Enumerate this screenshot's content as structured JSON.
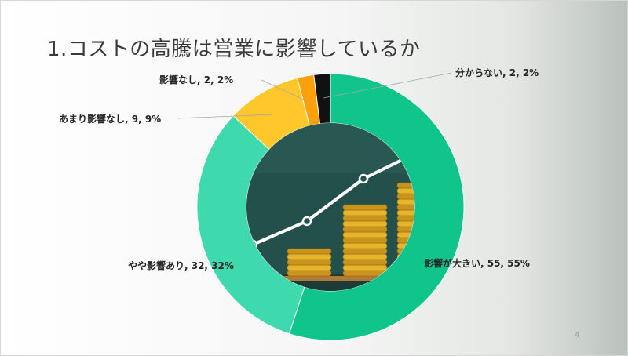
{
  "slide": {
    "title": "1.コストの高騰は営業に影響しているか",
    "page_number": "4"
  },
  "chart_data": {
    "type": "pie",
    "title": "1.コストの高騰は営業に影響しているか",
    "slices": [
      {
        "label": "影響が大きい",
        "value": 55,
        "percent": "55%",
        "color": "#10C58B"
      },
      {
        "label": "やや影響あり",
        "value": 32,
        "percent": "32%",
        "color": "#3FD9AE"
      },
      {
        "label": "あまり影響なし",
        "value": 9,
        "percent": "9%",
        "color": "#FFC72C"
      },
      {
        "label": "影響なし",
        "value": 2,
        "percent": "2%",
        "color": "#FF9F0A"
      },
      {
        "label": "分からない",
        "value": 2,
        "percent": "2%",
        "color": "#111111"
      }
    ],
    "data_labels": [
      "影響が大きい, 55, 55%",
      "やや影響あり, 32, 32%",
      "あまり影響なし, 9, 9%",
      "影響なし, 2, 2%",
      "分からない, 2, 2%"
    ],
    "center_image": "rising-coins-graph-photo"
  }
}
